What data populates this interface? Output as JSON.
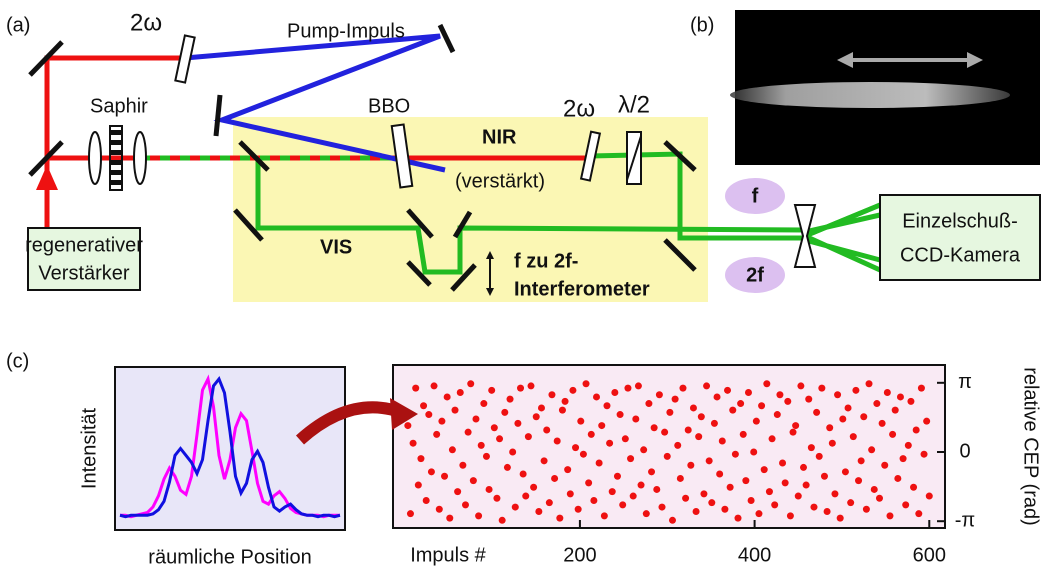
{
  "labels": {
    "panel_a": "(a)",
    "panel_b": "(b)",
    "panel_c": "(c)",
    "two_omega_1": "2ω",
    "pump": "Pump-Impuls",
    "saphir": "Saphir",
    "bbo": "BBO",
    "nir": "NIR",
    "verstaerkt": "(verstärkt)",
    "two_omega_2": "2ω",
    "lambda_half": "λ/2",
    "vis": "VIS",
    "f2f_1": "f zu 2f-",
    "f2f_2": "Interferometer",
    "amp_1": "regenerativer",
    "amp_2": "Verstärker",
    "f": "f",
    "two_f": "2f",
    "cam_1": "Einzelschuß-",
    "cam_2": "CCD-Kamera"
  },
  "chart_data": [
    {
      "type": "line",
      "xlabel": "räumliche Position",
      "ylabel": "Intensität",
      "x": [
        0,
        1,
        2,
        3,
        4,
        5,
        6,
        7,
        8,
        9,
        10,
        11,
        12,
        13,
        14,
        15,
        16,
        17,
        18,
        19,
        20,
        21,
        22,
        23,
        24,
        25,
        26,
        27,
        28,
        29,
        30,
        31,
        32,
        33,
        34,
        35,
        36,
        37,
        38,
        39,
        40
      ],
      "xlim": [
        0,
        40
      ],
      "ylim": [
        -0.05,
        1.05
      ],
      "series": [
        {
          "color": "#ff00ff",
          "values": [
            0.02,
            0.02,
            0.01,
            0.02,
            0.03,
            0.04,
            0.08,
            0.16,
            0.28,
            0.36,
            0.3,
            0.2,
            0.17,
            0.3,
            0.6,
            0.92,
            1.0,
            0.8,
            0.45,
            0.28,
            0.42,
            0.65,
            0.75,
            0.7,
            0.48,
            0.25,
            0.12,
            0.1,
            0.16,
            0.19,
            0.14,
            0.07,
            0.04,
            0.03,
            0.02,
            0.02,
            0.02,
            0.01,
            0.02,
            0.02,
            0.02
          ]
        },
        {
          "color": "#1010e0",
          "values": [
            0.02,
            0.01,
            0.02,
            0.02,
            0.02,
            0.02,
            0.03,
            0.06,
            0.12,
            0.26,
            0.45,
            0.5,
            0.45,
            0.4,
            0.32,
            0.42,
            0.7,
            0.95,
            1.0,
            0.9,
            0.62,
            0.3,
            0.18,
            0.25,
            0.42,
            0.48,
            0.4,
            0.22,
            0.08,
            0.05,
            0.08,
            0.1,
            0.06,
            0.03,
            0.02,
            0.02,
            0.01,
            0.02,
            0.02,
            0.01,
            0.02
          ]
        }
      ]
    },
    {
      "type": "scatter",
      "xlabel": "Impuls #",
      "ylabel": "relative CEP (rad)",
      "color": "#ee1111",
      "xlim": [
        -14,
        618
      ],
      "ylim": [
        -3.45,
        3.95
      ],
      "xticks": [
        200,
        400,
        600
      ],
      "yticks": [
        {
          "value": 3.14159,
          "label": "π"
        },
        0,
        {
          "value": -3.14159,
          "label": "-π"
        }
      ],
      "x": [
        3,
        6,
        9,
        12,
        15,
        18,
        21,
        24,
        27,
        30,
        33,
        36,
        39,
        42,
        45,
        48,
        51,
        54,
        57,
        60,
        63,
        66,
        69,
        72,
        75,
        78,
        81,
        84,
        87,
        90,
        93,
        96,
        99,
        102,
        105,
        108,
        111,
        114,
        117,
        120,
        123,
        126,
        129,
        132,
        135,
        138,
        141,
        144,
        147,
        150,
        153,
        156,
        159,
        162,
        165,
        168,
        171,
        174,
        177,
        180,
        183,
        186,
        189,
        192,
        195,
        198,
        201,
        204,
        207,
        210,
        213,
        216,
        219,
        222,
        225,
        228,
        231,
        234,
        237,
        240,
        243,
        246,
        249,
        252,
        255,
        258,
        261,
        264,
        267,
        270,
        273,
        276,
        279,
        282,
        285,
        288,
        291,
        294,
        297,
        300,
        303,
        306,
        309,
        312,
        315,
        318,
        321,
        324,
        327,
        330,
        333,
        336,
        339,
        342,
        345,
        348,
        351,
        354,
        357,
        360,
        363,
        366,
        369,
        372,
        375,
        378,
        381,
        384,
        387,
        390,
        393,
        396,
        399,
        402,
        405,
        408,
        411,
        414,
        417,
        420,
        423,
        426,
        429,
        432,
        435,
        438,
        441,
        444,
        447,
        450,
        453,
        456,
        459,
        462,
        465,
        468,
        471,
        474,
        477,
        480,
        483,
        486,
        489,
        492,
        495,
        498,
        501,
        504,
        507,
        510,
        513,
        516,
        519,
        522,
        525,
        528,
        531,
        534,
        537,
        540,
        543,
        546,
        549,
        552,
        555,
        558,
        561,
        564,
        567,
        570,
        573,
        576,
        579,
        582,
        585,
        588,
        591,
        594,
        597,
        600
      ],
      "values": [
        1.2,
        -2.8,
        0.4,
        2.9,
        -1.5,
        -0.3,
        2.1,
        -2.2,
        1.7,
        -0.9,
        3.0,
        0.8,
        -2.6,
        1.4,
        -1.1,
        2.5,
        -3.0,
        0.1,
        1.9,
        -1.8,
        2.7,
        -0.6,
        -2.4,
        0.9,
        3.1,
        -1.3,
        1.5,
        -2.9,
        0.3,
        2.2,
        -0.2,
        -1.7,
        2.8,
        1.1,
        -2.1,
        0.6,
        -3.1,
        1.8,
        -0.7,
        2.4,
        0.0,
        -2.5,
        1.3,
        2.9,
        -1.0,
        -2.0,
        0.7,
        3.0,
        -1.6,
        1.6,
        -2.7,
        2.0,
        -0.4,
        1.0,
        -2.3,
        2.6,
        -1.2,
        0.5,
        -3.0,
        1.9,
        2.3,
        -0.8,
        -1.9,
        2.8,
        0.2,
        -2.6,
        1.4,
        -0.1,
        3.1,
        -1.4,
        0.8,
        -2.2,
        2.5,
        -0.5,
        1.2,
        -2.9,
        2.1,
        0.4,
        -1.8,
        2.7,
        -1.1,
        1.7,
        -2.4,
        0.6,
        2.9,
        -0.3,
        -2.0,
        1.5,
        3.0,
        -1.5,
        0.1,
        -2.8,
        2.2,
        -0.9,
        1.1,
        -1.7,
        2.6,
        -2.5,
        0.9,
        -0.2,
        1.8,
        -3.1,
        2.4,
        0.3,
        -1.2,
        2.9,
        -2.1,
        1.0,
        -0.6,
        2.0,
        -2.7,
        0.7,
        1.6,
        -1.9,
        3.0,
        -0.4,
        -2.3,
        1.3,
        2.5,
        -1.0,
        0.5,
        -2.6,
        2.8,
        -1.6,
        1.9,
        -0.1,
        -3.0,
        2.2,
        0.8,
        -1.3,
        2.7,
        -2.2,
        0.0,
        1.4,
        -2.8,
        2.1,
        -0.8,
        3.1,
        -1.8,
        0.6,
        -2.4,
        1.7,
        2.6,
        -0.5,
        -1.4,
        2.3,
        -2.9,
        0.9,
        1.2,
        -2.0,
        3.0,
        -0.7,
        -1.5,
        2.4,
        0.2,
        -2.5,
        1.8,
        -0.2,
        2.9,
        -1.1,
        -2.7,
        1.1,
        0.4,
        -1.9,
        2.6,
        -3.0,
        1.5,
        -0.9,
        2.0,
        -2.3,
        0.7,
        2.8,
        -1.3,
        -0.4,
        1.6,
        -2.6,
        3.1,
        0.1,
        -1.7,
        2.2,
        -2.1,
        1.3,
        -0.6,
        2.7,
        -2.9,
        0.8,
        1.9,
        -1.2,
        2.5,
        -0.3,
        -2.4,
        0.3,
        2.3,
        -1.6,
        1.0,
        -2.8,
        2.9,
        -0.1,
        1.4,
        -2.0
      ]
    }
  ]
}
